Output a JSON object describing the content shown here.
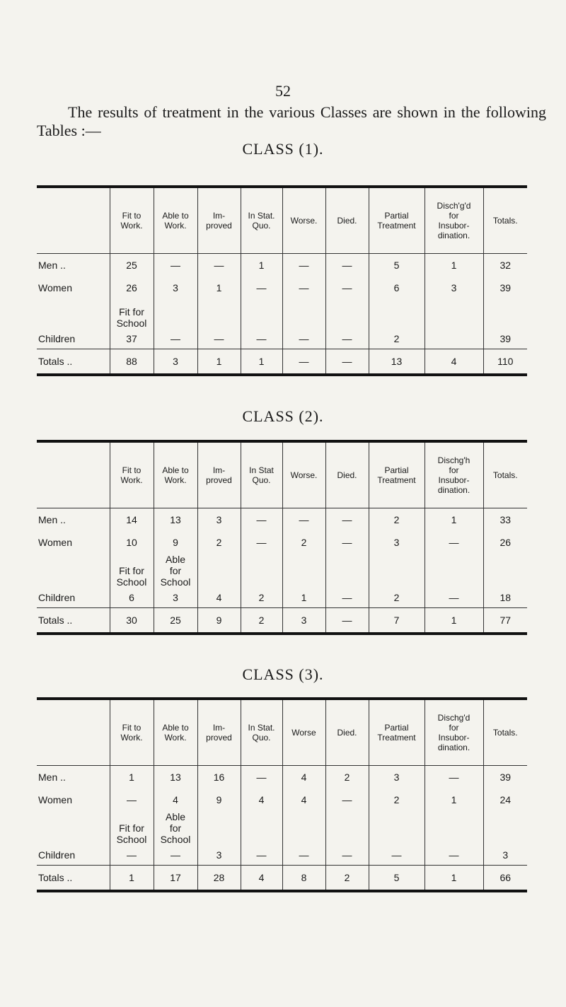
{
  "page_number": "52",
  "intro": "The results of treatment in the various Classes are shown in the following Tables :—",
  "tables": [
    {
      "title": "CLASS (1).",
      "headers": [
        "Fit to\nWork.",
        "Able to\nWork.",
        "Im-\nproved",
        "In Stat.\nQuo.",
        "Worse.",
        "Died.",
        "Partial\nTreatment",
        "Disch'g'd\nfor\nInsubor-\ndination.",
        "Totals."
      ],
      "rows": [
        {
          "label": "Men ..",
          "cells": [
            "25",
            "—",
            "—",
            "1",
            "—",
            "—",
            "5",
            "1",
            "32"
          ]
        },
        {
          "label": "Women",
          "cells": [
            "26",
            "3",
            "1",
            "—",
            "—",
            "—",
            "6",
            "3",
            "39"
          ]
        },
        {
          "label": "Children",
          "notes": [
            "Fit for\nSchool",
            null,
            null,
            null,
            null,
            null,
            null,
            null,
            null
          ],
          "cells": [
            "37",
            "—",
            "—",
            "—",
            "—",
            "—",
            "2",
            null,
            "39"
          ]
        },
        {
          "label": "Totals ..",
          "cells": [
            "88",
            "3",
            "1",
            "1",
            "—",
            "—",
            "13",
            "4",
            "110"
          ]
        }
      ]
    },
    {
      "title": "CLASS (2).",
      "headers": [
        "Fit to\nWork.",
        "Able to\nWork.",
        "Im-\nproved",
        "In Stat\nQuo.",
        "Worse.",
        "Died.",
        "Partial\nTreatment",
        "Dischg'h\nfor\nInsubor-\ndination.",
        "Totals."
      ],
      "rows": [
        {
          "label": "Men ..",
          "cells": [
            "14",
            "13",
            "3",
            "—",
            "—",
            "—",
            "2",
            "1",
            "33"
          ]
        },
        {
          "label": "Women",
          "cells": [
            "10",
            "9",
            "2",
            "—",
            "2",
            "—",
            "3",
            "—",
            "26"
          ]
        },
        {
          "label": "Children",
          "notes": [
            "Fit for\nSchool",
            "Able\nfor\nSchool",
            null,
            null,
            null,
            null,
            null,
            null,
            null
          ],
          "cells": [
            "6",
            "3",
            "4",
            "2",
            "1",
            "—",
            "2",
            "—",
            "18"
          ]
        },
        {
          "label": "Totals ..",
          "cells": [
            "30",
            "25",
            "9",
            "2",
            "3",
            "—",
            "7",
            "1",
            "77"
          ]
        }
      ]
    },
    {
      "title": "CLASS (3).",
      "headers": [
        "Fit to\nWork.",
        "Able to\nWork.",
        "Im-\nproved",
        "In Stat.\nQuo.",
        "Worse",
        "Died.",
        "Partial\nTreatment",
        "Dischg'd\nfor\nInsubor-\ndination.",
        "Totals."
      ],
      "rows": [
        {
          "label": "Men ..",
          "cells": [
            "1",
            "13",
            "16",
            "—",
            "4",
            "2",
            "3",
            "—",
            "39"
          ]
        },
        {
          "label": "Women",
          "cells": [
            "—",
            "4",
            "9",
            "4",
            "4",
            "—",
            "2",
            "1",
            "24"
          ]
        },
        {
          "label": "Children",
          "notes": [
            "Fit for\nSchool",
            "Able\nfor\nSchool",
            null,
            null,
            null,
            null,
            null,
            null,
            null
          ],
          "cells": [
            "—",
            "—",
            "3",
            "—",
            "—",
            "—",
            "—",
            "—",
            "3"
          ]
        },
        {
          "label": "Totals ..",
          "cells": [
            "1",
            "17",
            "28",
            "4",
            "8",
            "2",
            "5",
            "1",
            "66"
          ]
        }
      ]
    }
  ]
}
